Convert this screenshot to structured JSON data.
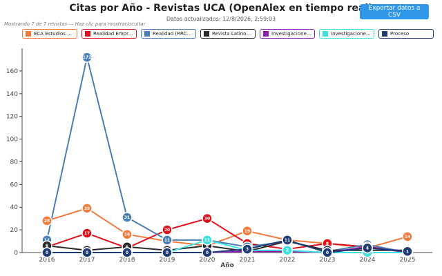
{
  "header": {
    "title": "Citas por Año - Revistas UCA (OpenAlex en tiempo real)",
    "updated": "Datos actualizados: 12/8/2026, 2:59:03",
    "export_label": "Exportar datos a CSV",
    "hint": "Mostrando 7 de 7 revistas — Haz clic para mostrar/ocultar"
  },
  "chart_data": {
    "type": "line",
    "title": "Citas por Año - Revistas UCA (OpenAlex en tiempo real)",
    "xlabel": "Año",
    "ylabel": "",
    "x": [
      2016,
      2017,
      2018,
      2019,
      2020,
      2021,
      2022,
      2023,
      2024,
      2025
    ],
    "x_tick_labels": [
      "2016",
      "2017",
      "2018",
      "2019",
      "2020",
      "2021",
      "2022",
      "2023",
      "2024",
      "2025"
    ],
    "ylim": [
      0,
      180
    ],
    "yticks": [
      0,
      20,
      40,
      60,
      80,
      100,
      120,
      140,
      160
    ],
    "y_tick_labels": [
      "0",
      "20",
      "40",
      "60",
      "80",
      "100",
      "120",
      "140",
      "160"
    ],
    "grid": false,
    "legend_position": "top",
    "series": [
      {
        "name": "ECA Estudios Ce...",
        "color": "#f47a3c",
        "values": [
          28,
          39,
          16,
          10,
          6,
          19,
          11,
          8,
          4,
          14
        ]
      },
      {
        "name": "Realidad Empres...",
        "color": "#e0101a",
        "values": [
          5,
          17,
          4,
          20,
          30,
          8,
          3,
          8,
          5,
          1
        ]
      },
      {
        "name": "Realidad (RRCSH)",
        "color": "#4a7fb5",
        "values": [
          11,
          172,
          31,
          11,
          11,
          5,
          10,
          1,
          7,
          0
        ]
      },
      {
        "name": "Revista Latinoa...",
        "color": "#2b2b2b",
        "values": [
          6,
          2,
          5,
          2,
          6,
          1,
          10,
          2,
          2,
          2
        ]
      },
      {
        "name": "Investigaciones...",
        "color": "#8e1fb5",
        "values": [
          0,
          0,
          0,
          0,
          0,
          1,
          1,
          0,
          5,
          0
        ]
      },
      {
        "name": "Investigaciones...",
        "color": "#3ee0e0",
        "values": [
          0,
          0,
          0,
          0,
          11,
          2,
          2,
          0,
          0,
          0
        ]
      },
      {
        "name": "Proceso",
        "color": "#1f3b73",
        "values": [
          0,
          0,
          0,
          0,
          0,
          3,
          11,
          0,
          4,
          1
        ]
      }
    ]
  }
}
